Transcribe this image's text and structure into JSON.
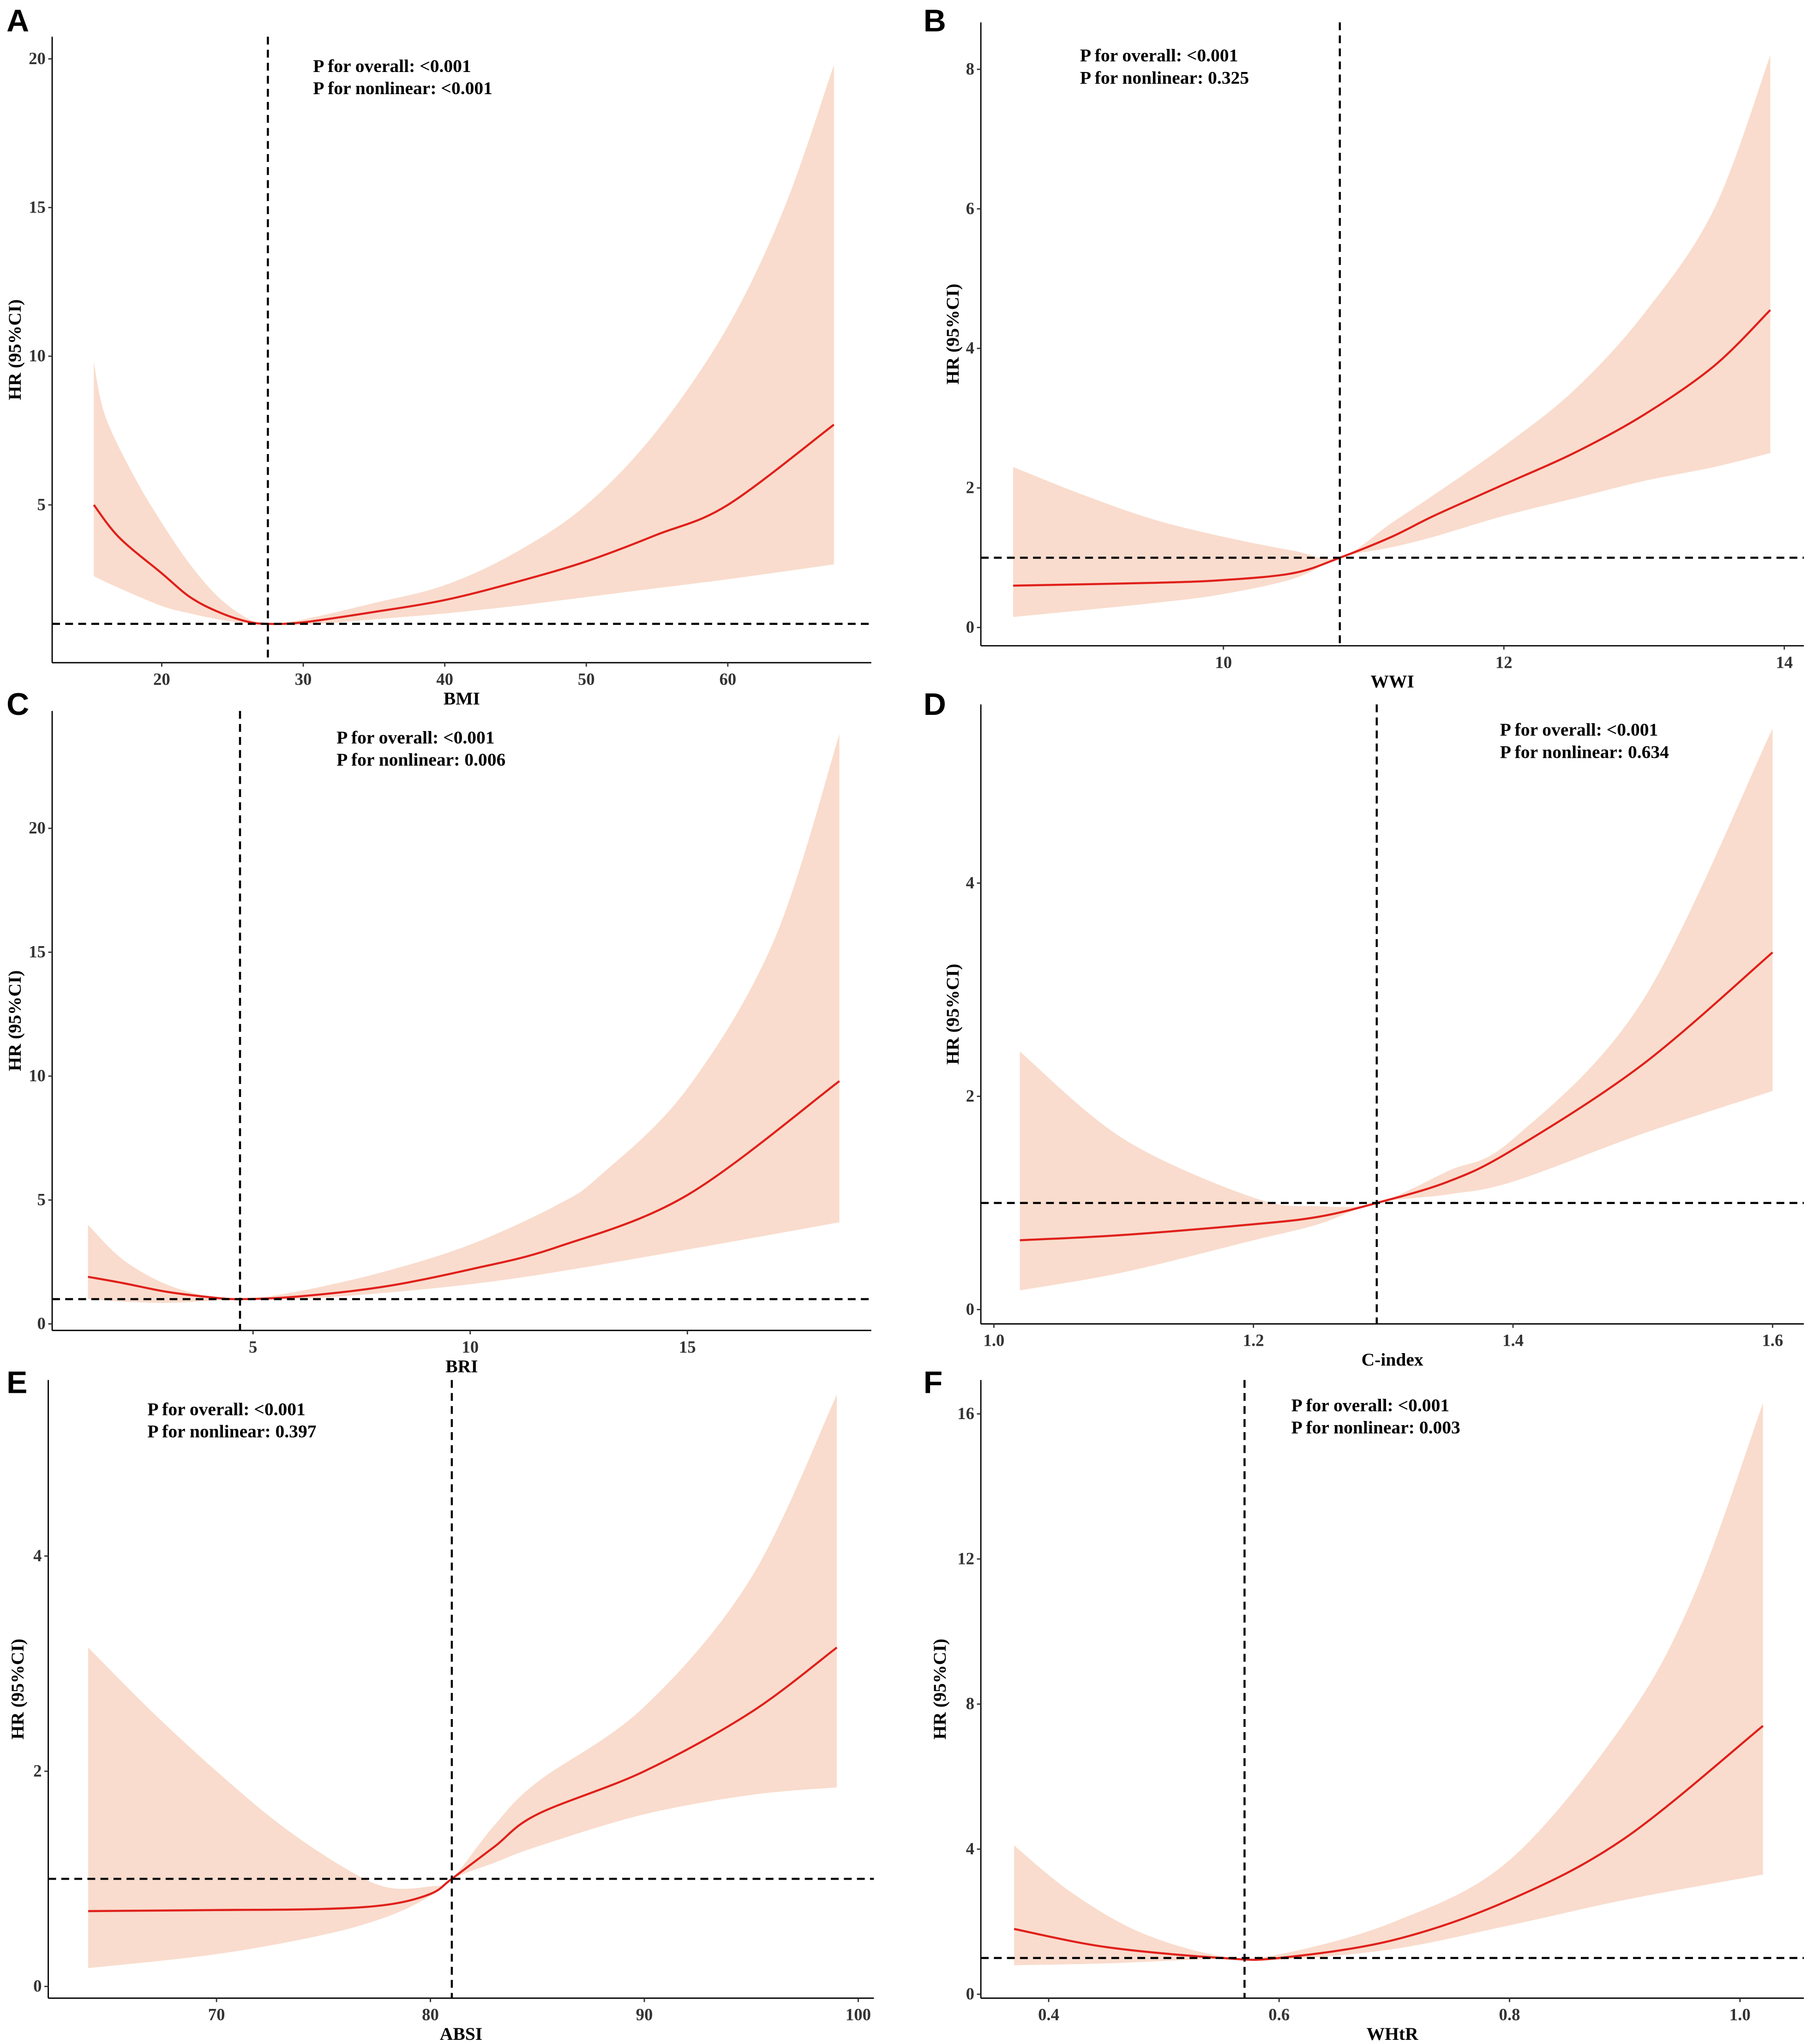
{
  "colors": {
    "band": "#f9dccd",
    "line": "#e0201b",
    "ref": "#000000"
  },
  "chart_data": [
    {
      "panel": "A",
      "type": "line",
      "xlabel": "BMI",
      "ylabel": "HR (95%CI)",
      "p_overall": "P for overall: <0.001",
      "p_nonlinear": "P for nonlinear: <0.001",
      "xticks": [
        20,
        30,
        40,
        50,
        60
      ],
      "yticks": [
        5,
        10,
        15,
        20
      ],
      "ref_x": 27.5,
      "ref_y": 1,
      "hr": [
        [
          15.2,
          5.0
        ],
        [
          17,
          3.9
        ],
        [
          20,
          2.7
        ],
        [
          22,
          1.9
        ],
        [
          24,
          1.4
        ],
        [
          26,
          1.08
        ],
        [
          27.5,
          1.0
        ],
        [
          30,
          1.05
        ],
        [
          35,
          1.4
        ],
        [
          40,
          1.8
        ],
        [
          45,
          2.4
        ],
        [
          50,
          3.1
        ],
        [
          55,
          4.0
        ],
        [
          60,
          5.0
        ],
        [
          67.5,
          7.7
        ]
      ],
      "lower": [
        [
          15.2,
          2.6
        ],
        [
          17,
          2.2
        ],
        [
          20,
          1.6
        ],
        [
          22,
          1.35
        ],
        [
          24,
          1.15
        ],
        [
          26,
          1.02
        ],
        [
          27.5,
          1.0
        ],
        [
          30,
          0.97
        ],
        [
          35,
          1.15
        ],
        [
          40,
          1.35
        ],
        [
          45,
          1.6
        ],
        [
          50,
          1.9
        ],
        [
          55,
          2.2
        ],
        [
          60,
          2.5
        ],
        [
          67.5,
          3.0
        ]
      ],
      "upper": [
        [
          15.2,
          9.8
        ],
        [
          16,
          8.0
        ],
        [
          18,
          6.0
        ],
        [
          20,
          4.4
        ],
        [
          22,
          3.0
        ],
        [
          24,
          1.9
        ],
        [
          26,
          1.2
        ],
        [
          27.5,
          1.0
        ],
        [
          30,
          1.15
        ],
        [
          35,
          1.7
        ],
        [
          40,
          2.3
        ],
        [
          45,
          3.4
        ],
        [
          50,
          5.0
        ],
        [
          55,
          7.5
        ],
        [
          60,
          11.0
        ],
        [
          64,
          15.0
        ],
        [
          67.5,
          19.8
        ]
      ]
    },
    {
      "panel": "B",
      "type": "line",
      "xlabel": "WWI",
      "ylabel": "HR (95%CI)",
      "p_overall": "P for overall: <0.001",
      "p_nonlinear": "P for nonlinear: 0.325",
      "xticks": [
        10,
        12,
        14
      ],
      "yticks": [
        0,
        2,
        4,
        6,
        8
      ],
      "ref_x": 10.83,
      "ref_y": 1,
      "hr": [
        [
          8.5,
          0.6
        ],
        [
          9.5,
          0.64
        ],
        [
          10,
          0.68
        ],
        [
          10.5,
          0.78
        ],
        [
          10.83,
          1.0
        ],
        [
          11.2,
          1.3
        ],
        [
          11.5,
          1.6
        ],
        [
          12,
          2.05
        ],
        [
          12.5,
          2.5
        ],
        [
          13,
          3.05
        ],
        [
          13.5,
          3.75
        ],
        [
          13.9,
          4.55
        ]
      ],
      "lower": [
        [
          8.5,
          0.15
        ],
        [
          9.5,
          0.35
        ],
        [
          10,
          0.48
        ],
        [
          10.5,
          0.7
        ],
        [
          10.83,
          1.0
        ],
        [
          11.2,
          1.15
        ],
        [
          11.5,
          1.3
        ],
        [
          12,
          1.6
        ],
        [
          12.5,
          1.85
        ],
        [
          13,
          2.1
        ],
        [
          13.5,
          2.3
        ],
        [
          13.9,
          2.5
        ]
      ],
      "upper": [
        [
          8.5,
          2.3
        ],
        [
          9,
          1.9
        ],
        [
          9.5,
          1.55
        ],
        [
          10,
          1.3
        ],
        [
          10.5,
          1.1
        ],
        [
          10.83,
          1.0
        ],
        [
          11.2,
          1.5
        ],
        [
          11.5,
          1.9
        ],
        [
          12,
          2.6
        ],
        [
          12.5,
          3.4
        ],
        [
          13,
          4.5
        ],
        [
          13.5,
          6.0
        ],
        [
          13.9,
          8.2
        ]
      ]
    },
    {
      "panel": "C",
      "type": "line",
      "xlabel": "BRI",
      "ylabel": "HR (95%CI)",
      "p_overall": "P for overall: <0.001",
      "p_nonlinear": "P for nonlinear: 0.006",
      "xticks": [
        5,
        10,
        15
      ],
      "yticks": [
        0,
        5,
        10,
        15,
        20
      ],
      "ref_x": 4.7,
      "ref_y": 1,
      "hr": [
        [
          1.2,
          1.9
        ],
        [
          2,
          1.65
        ],
        [
          3,
          1.3
        ],
        [
          4,
          1.08
        ],
        [
          4.7,
          1.0
        ],
        [
          6,
          1.1
        ],
        [
          8,
          1.5
        ],
        [
          10,
          2.2
        ],
        [
          12,
          3.1
        ],
        [
          15,
          5.2
        ],
        [
          18.5,
          9.8
        ]
      ],
      "lower": [
        [
          1.2,
          1.0
        ],
        [
          2,
          0.9
        ],
        [
          3,
          0.85
        ],
        [
          4,
          0.93
        ],
        [
          4.7,
          1.0
        ],
        [
          6,
          1.0
        ],
        [
          8,
          1.25
        ],
        [
          10,
          1.6
        ],
        [
          12,
          2.1
        ],
        [
          15,
          3.0
        ],
        [
          18.5,
          4.1
        ]
      ],
      "upper": [
        [
          1.2,
          4.0
        ],
        [
          2,
          2.6
        ],
        [
          3,
          1.6
        ],
        [
          4,
          1.1
        ],
        [
          4.7,
          1.0
        ],
        [
          6,
          1.3
        ],
        [
          8,
          2.1
        ],
        [
          10,
          3.2
        ],
        [
          12,
          4.8
        ],
        [
          13,
          6.0
        ],
        [
          15,
          9.5
        ],
        [
          17,
          15.5
        ],
        [
          18.5,
          23.8
        ]
      ]
    },
    {
      "panel": "D",
      "type": "line",
      "xlabel": "C-index",
      "ylabel": "HR (95%CI)",
      "p_overall": "P for overall: <0.001",
      "p_nonlinear": "P for nonlinear: 0.634",
      "xticks": [
        1.0,
        1.2,
        1.4,
        1.6
      ],
      "yticks": [
        0,
        2,
        4
      ],
      "ref_x": 1.295,
      "ref_y": 1,
      "hr": [
        [
          1.02,
          0.65
        ],
        [
          1.1,
          0.7
        ],
        [
          1.2,
          0.8
        ],
        [
          1.25,
          0.87
        ],
        [
          1.295,
          1.0
        ],
        [
          1.35,
          1.2
        ],
        [
          1.4,
          1.5
        ],
        [
          1.5,
          2.3
        ],
        [
          1.6,
          3.35
        ]
      ],
      "lower": [
        [
          1.02,
          0.18
        ],
        [
          1.1,
          0.35
        ],
        [
          1.2,
          0.65
        ],
        [
          1.25,
          0.8
        ],
        [
          1.295,
          1.0
        ],
        [
          1.35,
          1.08
        ],
        [
          1.4,
          1.2
        ],
        [
          1.5,
          1.65
        ],
        [
          1.6,
          2.05
        ]
      ],
      "upper": [
        [
          1.02,
          2.42
        ],
        [
          1.1,
          1.6
        ],
        [
          1.2,
          1.05
        ],
        [
          1.25,
          0.97
        ],
        [
          1.295,
          1.0
        ],
        [
          1.35,
          1.3
        ],
        [
          1.4,
          1.6
        ],
        [
          1.5,
          2.9
        ],
        [
          1.6,
          5.45
        ]
      ]
    },
    {
      "panel": "E",
      "type": "line",
      "xlabel": "ABSI",
      "ylabel": "HR (95%CI)",
      "p_overall": "P for overall: <0.001",
      "p_nonlinear": "P for nonlinear: 0.397",
      "xticks": [
        70,
        80,
        90,
        100
      ],
      "yticks": [
        0,
        2,
        4
      ],
      "ref_x": 81,
      "ref_y": 1,
      "hr": [
        [
          64,
          0.7
        ],
        [
          70,
          0.71
        ],
        [
          75,
          0.72
        ],
        [
          78,
          0.76
        ],
        [
          80,
          0.86
        ],
        [
          81,
          1.0
        ],
        [
          83,
          1.3
        ],
        [
          85,
          1.6
        ],
        [
          90,
          2.0
        ],
        [
          95,
          2.55
        ],
        [
          99,
          3.15
        ]
      ],
      "lower": [
        [
          64,
          0.17
        ],
        [
          70,
          0.3
        ],
        [
          75,
          0.48
        ],
        [
          78,
          0.65
        ],
        [
          80,
          0.84
        ],
        [
          81,
          1.0
        ],
        [
          83,
          1.15
        ],
        [
          85,
          1.3
        ],
        [
          90,
          1.6
        ],
        [
          95,
          1.78
        ],
        [
          99,
          1.85
        ]
      ],
      "upper": [
        [
          64,
          3.15
        ],
        [
          67,
          2.55
        ],
        [
          70,
          2.0
        ],
        [
          73,
          1.5
        ],
        [
          76,
          1.1
        ],
        [
          78,
          0.92
        ],
        [
          80,
          0.93
        ],
        [
          81,
          1.0
        ],
        [
          83,
          1.5
        ],
        [
          85,
          1.9
        ],
        [
          90,
          2.6
        ],
        [
          95,
          3.8
        ],
        [
          99,
          5.5
        ]
      ]
    },
    {
      "panel": "F",
      "type": "line",
      "xlabel": "WHtR",
      "ylabel": "HR (95%CI)",
      "p_overall": "P for overall: <0.001",
      "p_nonlinear": "P for nonlinear: 0.003",
      "xticks": [
        0.4,
        0.6,
        0.8,
        1.0
      ],
      "yticks": [
        0,
        4,
        8,
        12,
        16
      ],
      "ref_x": 0.57,
      "ref_y": 1,
      "hr": [
        [
          0.37,
          1.8
        ],
        [
          0.45,
          1.3
        ],
        [
          0.55,
          1.0
        ],
        [
          0.6,
          1.0
        ],
        [
          0.7,
          1.5
        ],
        [
          0.8,
          2.6
        ],
        [
          0.9,
          4.3
        ],
        [
          1.02,
          7.4
        ]
      ],
      "lower": [
        [
          0.37,
          0.8
        ],
        [
          0.45,
          0.85
        ],
        [
          0.55,
          0.98
        ],
        [
          0.6,
          0.95
        ],
        [
          0.7,
          1.25
        ],
        [
          0.8,
          1.9
        ],
        [
          0.9,
          2.6
        ],
        [
          1.02,
          3.3
        ]
      ],
      "upper": [
        [
          0.37,
          4.1
        ],
        [
          0.42,
          2.8
        ],
        [
          0.48,
          1.7
        ],
        [
          0.55,
          1.05
        ],
        [
          0.6,
          1.1
        ],
        [
          0.7,
          2.0
        ],
        [
          0.8,
          3.7
        ],
        [
          0.9,
          7.5
        ],
        [
          0.96,
          11.0
        ],
        [
          1.02,
          16.3
        ]
      ]
    }
  ]
}
